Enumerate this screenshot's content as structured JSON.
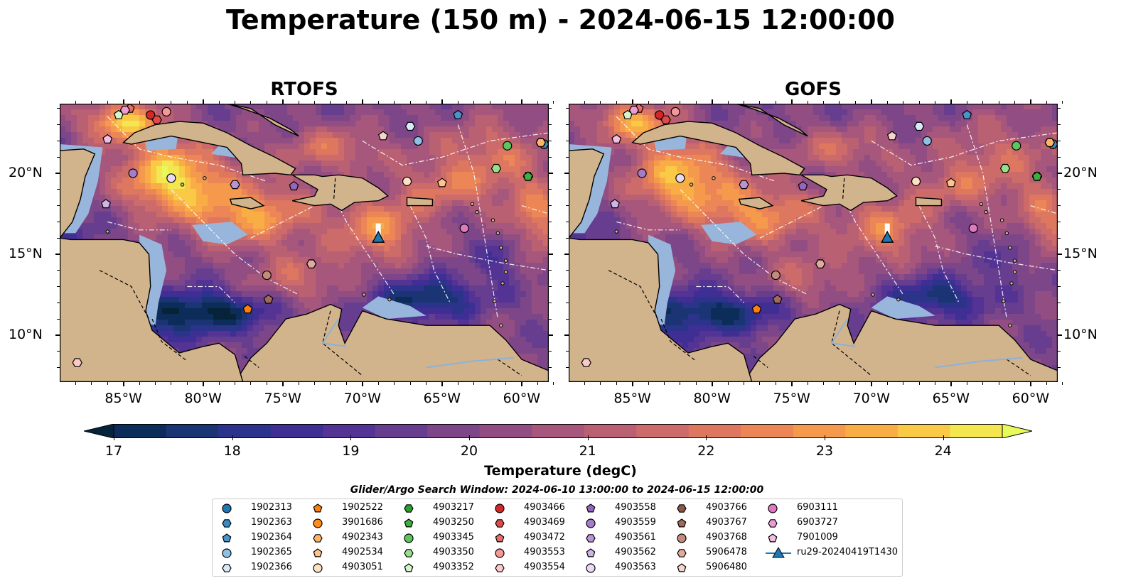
{
  "title": "Temperature (150 m) - 2024-06-15 12:00:00",
  "panels": [
    {
      "subtitle": "RTOFS"
    },
    {
      "subtitle": "GOFS"
    }
  ],
  "axes": {
    "x_labels": [
      "85°W",
      "80°W",
      "75°W",
      "70°W",
      "65°W",
      "60°W"
    ],
    "x_values": [
      -85,
      -80,
      -75,
      -70,
      -65,
      -60
    ],
    "y_labels": [
      "20°N",
      "15°N",
      "10°N"
    ],
    "y_values": [
      20,
      15,
      10
    ],
    "lon_range": [
      -89,
      -58.3
    ],
    "lat_range": [
      7.1,
      24.3
    ]
  },
  "colorbar": {
    "label": "Temperature (degC)",
    "ticks": [
      "17",
      "18",
      "19",
      "20",
      "21",
      "22",
      "23",
      "24"
    ],
    "min": 17.0,
    "max": 24.5,
    "colors": [
      "#06233a",
      "#0c2c59",
      "#1a3474",
      "#2c338a",
      "#3f2e93",
      "#533394",
      "#673e8f",
      "#7c4689",
      "#924e83",
      "#a6577b",
      "#ba6073",
      "#cc6b6a",
      "#de7760",
      "#ec8656",
      "#f59a4c",
      "#f9ae45",
      "#fac946",
      "#f3e64e",
      "#e9f95a"
    ]
  },
  "search_window": "Glider/Argo Search Window: 2024-06-10 13:00:00 to 2024-06-15 12:00:00",
  "legend": [
    {
      "label": "1902313",
      "color": "#1f77b4",
      "marker": "circle"
    },
    {
      "label": "1902363",
      "color": "#3a8ac4",
      "marker": "hexagon"
    },
    {
      "label": "1902364",
      "color": "#4a94cc",
      "marker": "pentagon"
    },
    {
      "label": "1902365",
      "color": "#8ec1e6",
      "marker": "circle"
    },
    {
      "label": "1902366",
      "color": "#d6eaf8",
      "marker": "hexagon"
    },
    {
      "label": "1902522",
      "color": "#ff7f0e",
      "marker": "pentagon"
    },
    {
      "label": "3901686",
      "color": "#ff8c1a",
      "marker": "circle"
    },
    {
      "label": "4902343",
      "color": "#ffb366",
      "marker": "hexagon"
    },
    {
      "label": "4902534",
      "color": "#ffc48c",
      "marker": "pentagon"
    },
    {
      "label": "4903051",
      "color": "#ffe0c2",
      "marker": "circle"
    },
    {
      "label": "4903217",
      "color": "#2ca02c",
      "marker": "hexagon"
    },
    {
      "label": "4903250",
      "color": "#3cb03c",
      "marker": "pentagon"
    },
    {
      "label": "4903345",
      "color": "#5cc55c",
      "marker": "circle"
    },
    {
      "label": "4903350",
      "color": "#98df8a",
      "marker": "hexagon"
    },
    {
      "label": "4903352",
      "color": "#d4f5cc",
      "marker": "pentagon"
    },
    {
      "label": "4903466",
      "color": "#d62728",
      "marker": "circle"
    },
    {
      "label": "4903469",
      "color": "#e04a4a",
      "marker": "hexagon"
    },
    {
      "label": "4903472",
      "color": "#ea6b6b",
      "marker": "pentagon"
    },
    {
      "label": "4903553",
      "color": "#f59797",
      "marker": "circle"
    },
    {
      "label": "4903554",
      "color": "#fcc9c9",
      "marker": "hexagon"
    },
    {
      "label": "4903558",
      "color": "#9467bd",
      "marker": "pentagon"
    },
    {
      "label": "4903559",
      "color": "#a57cc8",
      "marker": "circle"
    },
    {
      "label": "4903561",
      "color": "#b893d6",
      "marker": "hexagon"
    },
    {
      "label": "4903562",
      "color": "#cfb4e6",
      "marker": "pentagon"
    },
    {
      "label": "4903563",
      "color": "#ead9f5",
      "marker": "circle"
    },
    {
      "label": "4903766",
      "color": "#8c564b",
      "marker": "hexagon"
    },
    {
      "label": "4903767",
      "color": "#a0695c",
      "marker": "pentagon"
    },
    {
      "label": "4903768",
      "color": "#c48a7c",
      "marker": "circle"
    },
    {
      "label": "5906478",
      "color": "#e0aa9c",
      "marker": "hexagon"
    },
    {
      "label": "5906480",
      "color": "#f5d6cc",
      "marker": "pentagon"
    },
    {
      "label": "6903111",
      "color": "#e377c2",
      "marker": "circle"
    },
    {
      "label": "6903727",
      "color": "#ec9bd3",
      "marker": "hexagon"
    },
    {
      "label": "7901009",
      "color": "#f5bde3",
      "marker": "pentagon"
    },
    {
      "label": "ru29-20240419T1430",
      "color": "#1f77b4",
      "marker": "triangle"
    }
  ],
  "floats": [
    {
      "id": "1902313",
      "lon": -58.6,
      "lat": 21.8
    },
    {
      "id": "1902363",
      "lon": -58.6,
      "lat": 21.8
    },
    {
      "id": "1902364",
      "lon": -64.0,
      "lat": 23.6
    },
    {
      "id": "1902365",
      "lon": -66.5,
      "lat": 22.0
    },
    {
      "id": "1902366",
      "lon": -67.0,
      "lat": 22.9
    },
    {
      "id": "1902522",
      "lon": -77.2,
      "lat": 11.6
    },
    {
      "id": "3901686",
      "lon": -58.8,
      "lat": 21.9
    },
    {
      "id": "4902343",
      "lon": -58.8,
      "lat": 21.9
    },
    {
      "id": "4902534",
      "lon": -65.0,
      "lat": 19.4
    },
    {
      "id": "4903051",
      "lon": -67.2,
      "lat": 19.5
    },
    {
      "id": "4903217",
      "lon": -59.6,
      "lat": 19.8
    },
    {
      "id": "4903250",
      "lon": -59.6,
      "lat": 19.8
    },
    {
      "id": "4903345",
      "lon": -60.9,
      "lat": 21.7
    },
    {
      "id": "4903350",
      "lon": -61.6,
      "lat": 20.3
    },
    {
      "id": "4903352",
      "lon": -85.3,
      "lat": 23.6
    },
    {
      "id": "4903466",
      "lon": -83.3,
      "lat": 23.6
    },
    {
      "id": "4903469",
      "lon": -82.9,
      "lat": 23.3
    },
    {
      "id": "4903472",
      "lon": -84.6,
      "lat": 24.0
    },
    {
      "id": "4903553",
      "lon": -82.3,
      "lat": 23.8
    },
    {
      "id": "4903554",
      "lon": -87.9,
      "lat": 8.3
    },
    {
      "id": "4903558",
      "lon": -74.3,
      "lat": 19.2
    },
    {
      "id": "4903559",
      "lon": -84.4,
      "lat": 20.0
    },
    {
      "id": "4903561",
      "lon": -78.0,
      "lat": 19.3
    },
    {
      "id": "4903562",
      "lon": -86.1,
      "lat": 18.1
    },
    {
      "id": "4903563",
      "lon": -82.0,
      "lat": 19.7
    },
    {
      "id": "4903766",
      "lon": -73.2,
      "lat": 14.4
    },
    {
      "id": "4903767",
      "lon": -75.9,
      "lat": 12.2
    },
    {
      "id": "4903768",
      "lon": -76.0,
      "lat": 13.7
    },
    {
      "id": "5906478",
      "lon": -73.2,
      "lat": 14.4
    },
    {
      "id": "5906480",
      "lon": -68.7,
      "lat": 22.3
    },
    {
      "id": "6903111",
      "lon": -63.6,
      "lat": 16.6
    },
    {
      "id": "6903727",
      "lon": -84.9,
      "lat": 23.9
    },
    {
      "id": "7901009",
      "lon": -86.0,
      "lat": 22.1
    }
  ],
  "glider": {
    "id": "ru29-20240419T1430",
    "lon": -69.0,
    "lat": 16.0,
    "track_top_lat": 16.9
  }
}
